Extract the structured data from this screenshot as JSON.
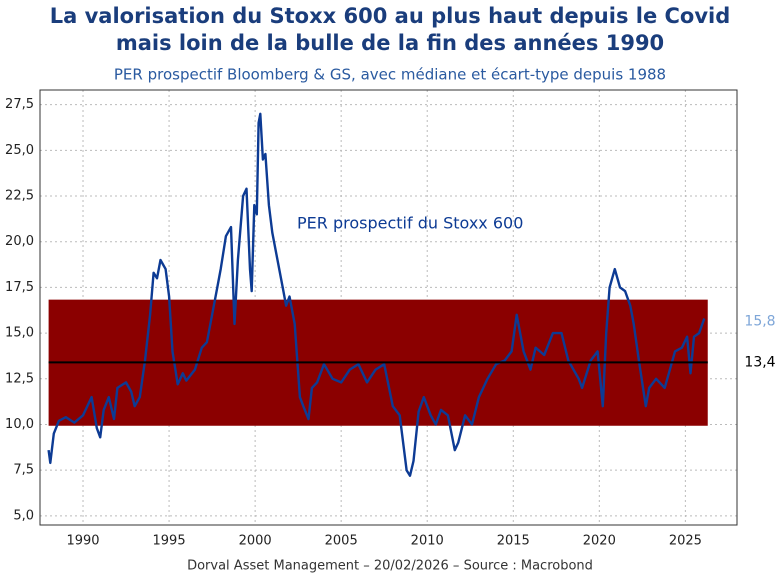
{
  "chart_data": {
    "type": "line",
    "title": [
      "La valorisation du Stoxx 600 au plus haut depuis le Covid",
      "mais loin de la bulle de la fin des années 1990"
    ],
    "subtitle": "PER prospectif Bloomberg & GS, avec médiane et écart-type depuis 1988",
    "annotation": "PER prospectif du Stoxx 600",
    "footer": "Dorval Asset Management – 20/02/2026 –   Source : Macrobond",
    "xlim": [
      1987.5,
      2028
    ],
    "ylim": [
      4.5,
      28.3
    ],
    "xticks": [
      1990,
      1995,
      2000,
      2005,
      2010,
      2015,
      2020,
      2025
    ],
    "yticks": [
      {
        "value": 5,
        "label": "5,0"
      },
      {
        "value": 7.5,
        "label": "7,5"
      },
      {
        "value": 10,
        "label": "10,0"
      },
      {
        "value": 12.5,
        "label": "12,5"
      },
      {
        "value": 15,
        "label": "15,0"
      },
      {
        "value": 17.5,
        "label": "17,5"
      },
      {
        "value": 20,
        "label": "20,0"
      },
      {
        "value": 22.5,
        "label": "22,5"
      },
      {
        "value": 25,
        "label": "25,0"
      },
      {
        "value": 27.5,
        "label": "27,5"
      }
    ],
    "grid": true,
    "band": {
      "x": [
        1988.0,
        2026.3
      ],
      "lower": 9.93,
      "upper": 16.83,
      "color": "#8b0000"
    },
    "median": {
      "value": 13.4,
      "label": "13,4",
      "color": "#000000"
    },
    "end_label": {
      "value": 15.8,
      "label": "15,8",
      "color": "#7ea6d8"
    },
    "series": [
      {
        "name": "PER prospectif du Stoxx 600",
        "color": "#0d3b94",
        "x": [
          1988.0,
          1988.1,
          1988.3,
          1988.6,
          1989.0,
          1989.5,
          1990.0,
          1990.5,
          1990.8,
          1991.0,
          1991.2,
          1991.5,
          1991.8,
          1992.0,
          1992.5,
          1992.8,
          1993.0,
          1993.3,
          1993.6,
          1993.9,
          1994.1,
          1994.3,
          1994.5,
          1994.8,
          1995.0,
          1995.2,
          1995.5,
          1995.8,
          1996.0,
          1996.5,
          1996.9,
          1997.2,
          1997.5,
          1997.8,
          1998.0,
          1998.3,
          1998.6,
          1998.8,
          1999.0,
          1999.3,
          1999.5,
          1999.7,
          1999.8,
          1999.95,
          2000.1,
          2000.2,
          2000.3,
          2000.45,
          2000.6,
          2000.8,
          2001.0,
          2001.3,
          2001.6,
          2001.8,
          2002.0,
          2002.3,
          2002.6,
          2002.8,
          2003.1,
          2003.3,
          2003.6,
          2004.0,
          2004.5,
          2005.0,
          2005.5,
          2006.0,
          2006.5,
          2007.0,
          2007.5,
          2008.0,
          2008.4,
          2008.8,
          2009.0,
          2009.2,
          2009.5,
          2009.8,
          2010.2,
          2010.5,
          2010.8,
          2011.2,
          2011.6,
          2011.8,
          2012.2,
          2012.6,
          2013.0,
          2013.5,
          2014.0,
          2014.5,
          2014.9,
          2015.2,
          2015.6,
          2016.0,
          2016.3,
          2016.8,
          2017.3,
          2017.8,
          2018.2,
          2018.8,
          2019.0,
          2019.5,
          2019.9,
          2020.2,
          2020.4,
          2020.6,
          2020.9,
          2021.2,
          2021.5,
          2021.8,
          2022.0,
          2022.3,
          2022.7,
          2022.9,
          2023.3,
          2023.8,
          2024.1,
          2024.4,
          2024.8,
          2025.1,
          2025.3,
          2025.5,
          2025.8,
          2026.1
        ],
        "values": [
          8.6,
          7.9,
          9.5,
          10.2,
          10.4,
          10.1,
          10.5,
          11.5,
          9.8,
          9.3,
          10.8,
          11.5,
          10.3,
          12.0,
          12.3,
          11.8,
          11.0,
          11.5,
          13.5,
          16.0,
          18.3,
          18.0,
          19.0,
          18.5,
          17.0,
          14.0,
          12.2,
          12.8,
          12.4,
          13.0,
          14.2,
          14.5,
          16.0,
          17.5,
          18.5,
          20.3,
          20.8,
          15.5,
          19.0,
          22.5,
          22.9,
          18.5,
          17.3,
          22.0,
          21.5,
          26.5,
          27.0,
          24.5,
          24.8,
          22.0,
          20.5,
          19.0,
          17.5,
          16.5,
          17.0,
          15.5,
          11.5,
          11.0,
          10.3,
          12.0,
          12.3,
          13.3,
          12.5,
          12.3,
          13.0,
          13.3,
          12.3,
          13.0,
          13.3,
          11.0,
          10.5,
          7.5,
          7.2,
          8.0,
          10.7,
          11.5,
          10.5,
          10.0,
          10.8,
          10.5,
          8.6,
          9.0,
          10.5,
          10.0,
          11.5,
          12.5,
          13.3,
          13.5,
          14.0,
          16.0,
          14.0,
          13.0,
          14.2,
          13.8,
          15.0,
          15.0,
          13.5,
          12.5,
          12.0,
          13.5,
          14.0,
          11.0,
          15.0,
          17.5,
          18.5,
          17.5,
          17.3,
          16.5,
          15.5,
          13.5,
          11.0,
          12.0,
          12.5,
          12.0,
          13.0,
          14.0,
          14.2,
          14.8,
          12.8,
          14.8,
          15.0,
          15.8
        ]
      }
    ]
  }
}
